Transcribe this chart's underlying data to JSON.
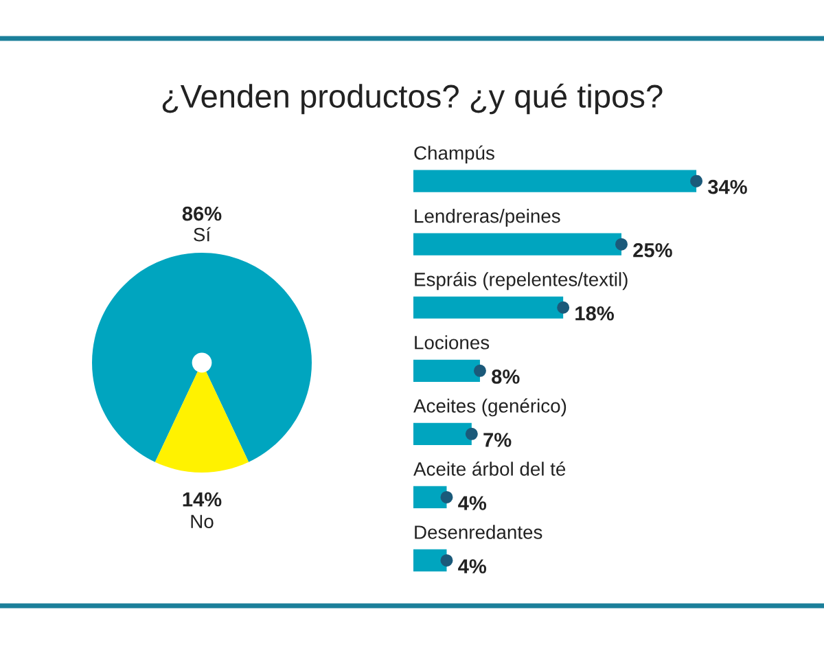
{
  "chart_data": [
    {
      "type": "pie",
      "title": "¿Venden productos? ¿y qué tipos?",
      "categories": [
        "Sí",
        "No"
      ],
      "values": [
        86,
        14
      ],
      "colors": [
        "#00a5bf",
        "#fff200"
      ],
      "value_labels": [
        "86%",
        "14%"
      ]
    },
    {
      "type": "bar",
      "orientation": "horizontal",
      "categories": [
        "Champús",
        "Lendreras/peines",
        "Espráis (repelentes/textil)",
        "Lociones",
        "Aceites (genérico)",
        "Aceite árbol del té",
        "Desenredantes"
      ],
      "series": [
        {
          "type": "bar",
          "color": "#00a5bf",
          "values": [
            34,
            25,
            18,
            8,
            7,
            4,
            4
          ],
          "value_labels": [
            "34%",
            "25%",
            "18%",
            "8%",
            "7%",
            "4%",
            "4%"
          ]
        },
        {
          "type": "scatter",
          "color": "#1b5a7a",
          "marker": "circle",
          "x": [
            "Champús",
            "Lendreras/peines",
            "Espráis (repelentes/textil)",
            "Lociones",
            "Aceites (genérico)",
            "Aceite árbol del té",
            "Desenredantes"
          ],
          "values": [
            34,
            25,
            18,
            8,
            7,
            4,
            4
          ]
        }
      ],
      "tick_labels": false
    }
  ]
}
